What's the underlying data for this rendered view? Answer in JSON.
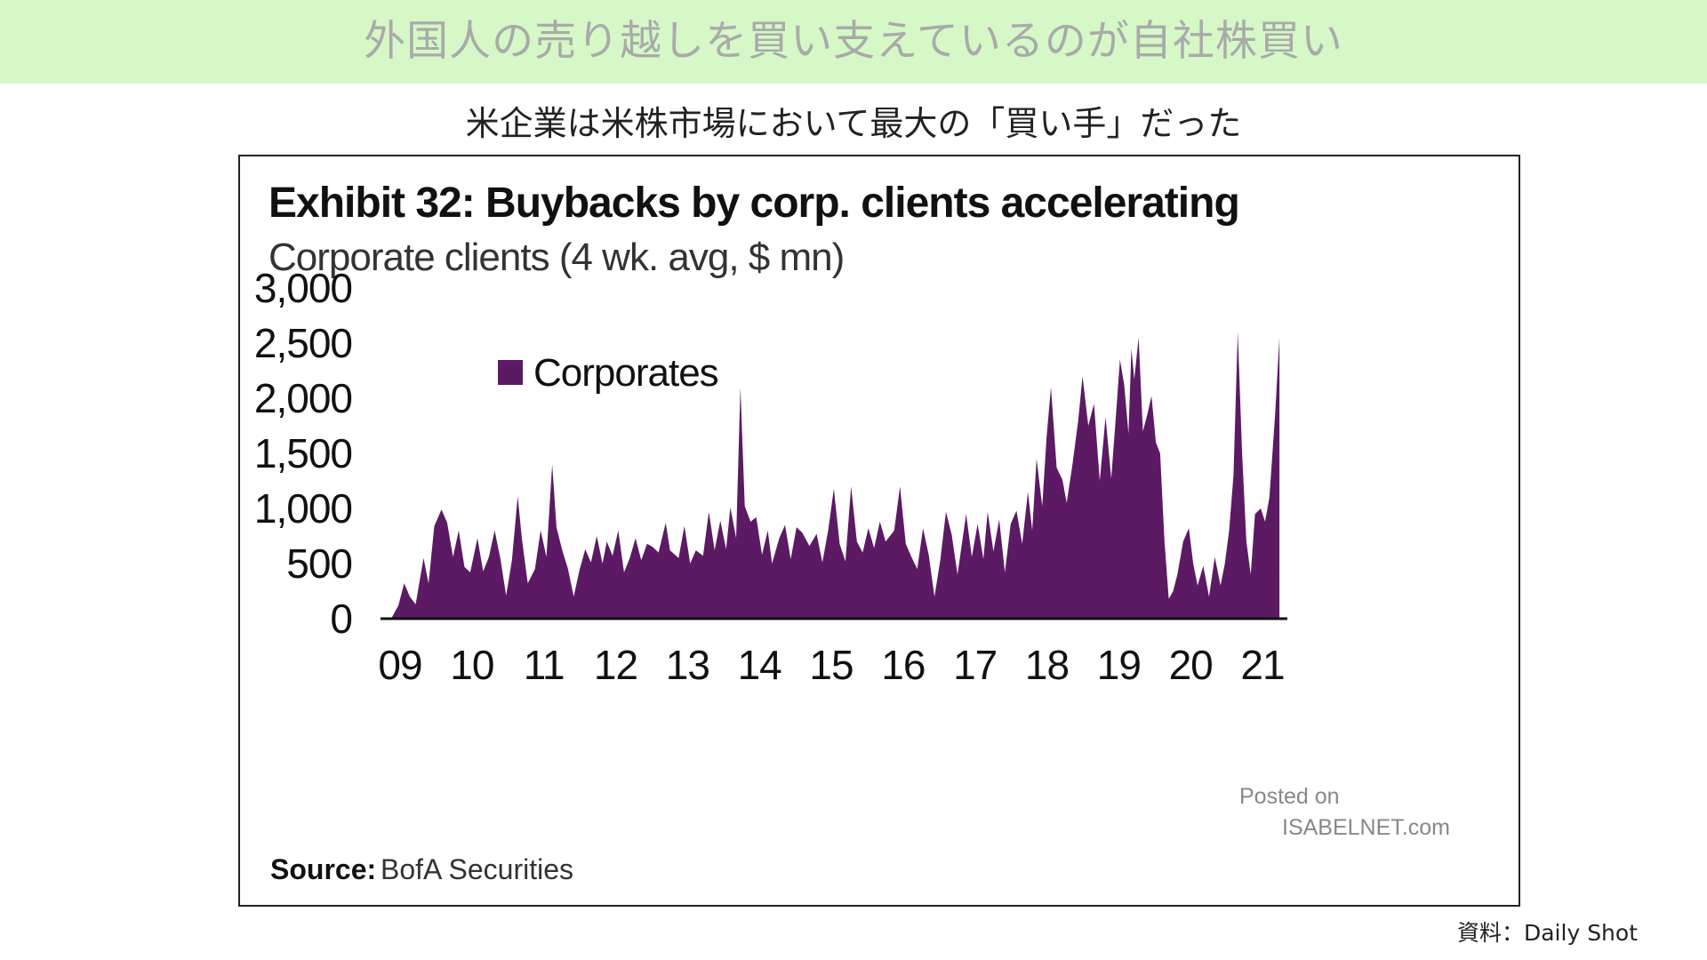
{
  "header": {
    "title": "外国人の売り越しを買い支えているのが自社株買い"
  },
  "subtitle": "米企業は米株市場において最大の「買い手」だった",
  "footnote": "資料：Daily Shot",
  "colors": {
    "banner": "#d6f8c6",
    "series": "#5b1a63"
  },
  "chart_data": {
    "type": "area",
    "title": "Exhibit 32: Buybacks by corp. clients accelerating",
    "subtitle": "Corporate clients (4 wk. avg, $ mn)",
    "source_label": "Source:",
    "source_value": "BofA Securities",
    "watermark": [
      "Posted on",
      "ISABELNET.com"
    ],
    "ylim": [
      0,
      3000
    ],
    "y_ticks": [
      "3,000",
      "2,500",
      "2,000",
      "1,500",
      "1,000",
      "500",
      "0"
    ],
    "x_ticks": [
      "09",
      "10",
      "11",
      "12",
      "13",
      "14",
      "15",
      "16",
      "17",
      "18",
      "19",
      "20",
      "21"
    ],
    "legend": {
      "position": "top-left",
      "entries": [
        "Corporates"
      ]
    },
    "grid": false,
    "series": [
      {
        "name": "Corporates",
        "points": [
          [
            2009.0,
            0
          ],
          [
            2009.1,
            120
          ],
          [
            2009.18,
            320
          ],
          [
            2009.26,
            200
          ],
          [
            2009.34,
            130
          ],
          [
            2009.45,
            550
          ],
          [
            2009.52,
            320
          ],
          [
            2009.6,
            840
          ],
          [
            2009.7,
            990
          ],
          [
            2009.78,
            870
          ],
          [
            2009.86,
            560
          ],
          [
            2009.94,
            800
          ],
          [
            2010.02,
            470
          ],
          [
            2010.1,
            420
          ],
          [
            2010.2,
            730
          ],
          [
            2010.28,
            430
          ],
          [
            2010.36,
            560
          ],
          [
            2010.44,
            800
          ],
          [
            2010.52,
            540
          ],
          [
            2010.6,
            210
          ],
          [
            2010.68,
            530
          ],
          [
            2010.76,
            1110
          ],
          [
            2010.82,
            720
          ],
          [
            2010.9,
            320
          ],
          [
            2011.0,
            450
          ],
          [
            2011.08,
            800
          ],
          [
            2011.16,
            560
          ],
          [
            2011.24,
            1400
          ],
          [
            2011.3,
            830
          ],
          [
            2011.38,
            620
          ],
          [
            2011.46,
            450
          ],
          [
            2011.54,
            200
          ],
          [
            2011.62,
            440
          ],
          [
            2011.7,
            630
          ],
          [
            2011.78,
            510
          ],
          [
            2011.86,
            750
          ],
          [
            2011.94,
            500
          ],
          [
            2012.0,
            700
          ],
          [
            2012.08,
            570
          ],
          [
            2012.16,
            800
          ],
          [
            2012.24,
            420
          ],
          [
            2012.32,
            550
          ],
          [
            2012.4,
            730
          ],
          [
            2012.48,
            530
          ],
          [
            2012.56,
            680
          ],
          [
            2012.64,
            650
          ],
          [
            2012.72,
            600
          ],
          [
            2012.82,
            870
          ],
          [
            2012.88,
            620
          ],
          [
            2013.0,
            550
          ],
          [
            2013.08,
            840
          ],
          [
            2013.16,
            500
          ],
          [
            2013.24,
            620
          ],
          [
            2013.34,
            570
          ],
          [
            2013.42,
            970
          ],
          [
            2013.5,
            620
          ],
          [
            2013.58,
            890
          ],
          [
            2013.66,
            630
          ],
          [
            2013.72,
            1010
          ],
          [
            2013.8,
            730
          ],
          [
            2013.86,
            2100
          ],
          [
            2013.92,
            1020
          ],
          [
            2014.0,
            880
          ],
          [
            2014.08,
            920
          ],
          [
            2014.16,
            580
          ],
          [
            2014.24,
            800
          ],
          [
            2014.3,
            500
          ],
          [
            2014.4,
            730
          ],
          [
            2014.48,
            850
          ],
          [
            2014.56,
            540
          ],
          [
            2014.64,
            830
          ],
          [
            2014.72,
            780
          ],
          [
            2014.82,
            660
          ],
          [
            2014.92,
            770
          ],
          [
            2015.0,
            510
          ],
          [
            2015.08,
            800
          ],
          [
            2015.16,
            1180
          ],
          [
            2015.24,
            680
          ],
          [
            2015.32,
            520
          ],
          [
            2015.4,
            1200
          ],
          [
            2015.48,
            700
          ],
          [
            2015.56,
            600
          ],
          [
            2015.64,
            820
          ],
          [
            2015.72,
            640
          ],
          [
            2015.8,
            880
          ],
          [
            2015.88,
            700
          ],
          [
            2016.0,
            800
          ],
          [
            2016.08,
            1200
          ],
          [
            2016.16,
            680
          ],
          [
            2016.24,
            560
          ],
          [
            2016.32,
            450
          ],
          [
            2016.4,
            820
          ],
          [
            2016.48,
            580
          ],
          [
            2016.56,
            200
          ],
          [
            2016.64,
            530
          ],
          [
            2016.72,
            970
          ],
          [
            2016.8,
            760
          ],
          [
            2016.88,
            400
          ],
          [
            2017.0,
            950
          ],
          [
            2017.08,
            560
          ],
          [
            2017.16,
            860
          ],
          [
            2017.24,
            540
          ],
          [
            2017.3,
            970
          ],
          [
            2017.38,
            610
          ],
          [
            2017.46,
            900
          ],
          [
            2017.54,
            420
          ],
          [
            2017.62,
            860
          ],
          [
            2017.7,
            980
          ],
          [
            2017.78,
            680
          ],
          [
            2017.86,
            1150
          ],
          [
            2017.92,
            800
          ],
          [
            2017.98,
            1450
          ],
          [
            2018.06,
            1020
          ],
          [
            2018.12,
            1650
          ],
          [
            2018.18,
            2100
          ],
          [
            2018.26,
            1370
          ],
          [
            2018.34,
            1260
          ],
          [
            2018.4,
            1050
          ],
          [
            2018.48,
            1400
          ],
          [
            2018.56,
            1800
          ],
          [
            2018.62,
            2200
          ],
          [
            2018.7,
            1750
          ],
          [
            2018.78,
            1950
          ],
          [
            2018.86,
            1250
          ],
          [
            2018.94,
            1830
          ],
          [
            2019.02,
            1270
          ],
          [
            2019.08,
            1800
          ],
          [
            2019.14,
            2350
          ],
          [
            2019.2,
            2120
          ],
          [
            2019.26,
            1680
          ],
          [
            2019.3,
            2450
          ],
          [
            2019.34,
            2170
          ],
          [
            2019.4,
            2550
          ],
          [
            2019.46,
            1700
          ],
          [
            2019.52,
            1850
          ],
          [
            2019.58,
            2020
          ],
          [
            2019.64,
            1600
          ],
          [
            2019.7,
            1500
          ],
          [
            2019.76,
            700
          ],
          [
            2019.82,
            180
          ],
          [
            2019.88,
            250
          ],
          [
            2019.94,
            400
          ],
          [
            2020.02,
            700
          ],
          [
            2020.1,
            820
          ],
          [
            2020.16,
            500
          ],
          [
            2020.22,
            300
          ],
          [
            2020.3,
            480
          ],
          [
            2020.38,
            200
          ],
          [
            2020.46,
            560
          ],
          [
            2020.54,
            300
          ],
          [
            2020.6,
            500
          ],
          [
            2020.66,
            800
          ],
          [
            2020.72,
            1300
          ],
          [
            2020.78,
            2600
          ],
          [
            2020.84,
            1500
          ],
          [
            2020.9,
            700
          ],
          [
            2020.96,
            400
          ],
          [
            2021.02,
            950
          ],
          [
            2021.1,
            1000
          ],
          [
            2021.16,
            880
          ],
          [
            2021.22,
            1100
          ],
          [
            2021.3,
            1850
          ],
          [
            2021.36,
            2550
          ],
          [
            2021.36,
            0
          ]
        ]
      }
    ]
  }
}
